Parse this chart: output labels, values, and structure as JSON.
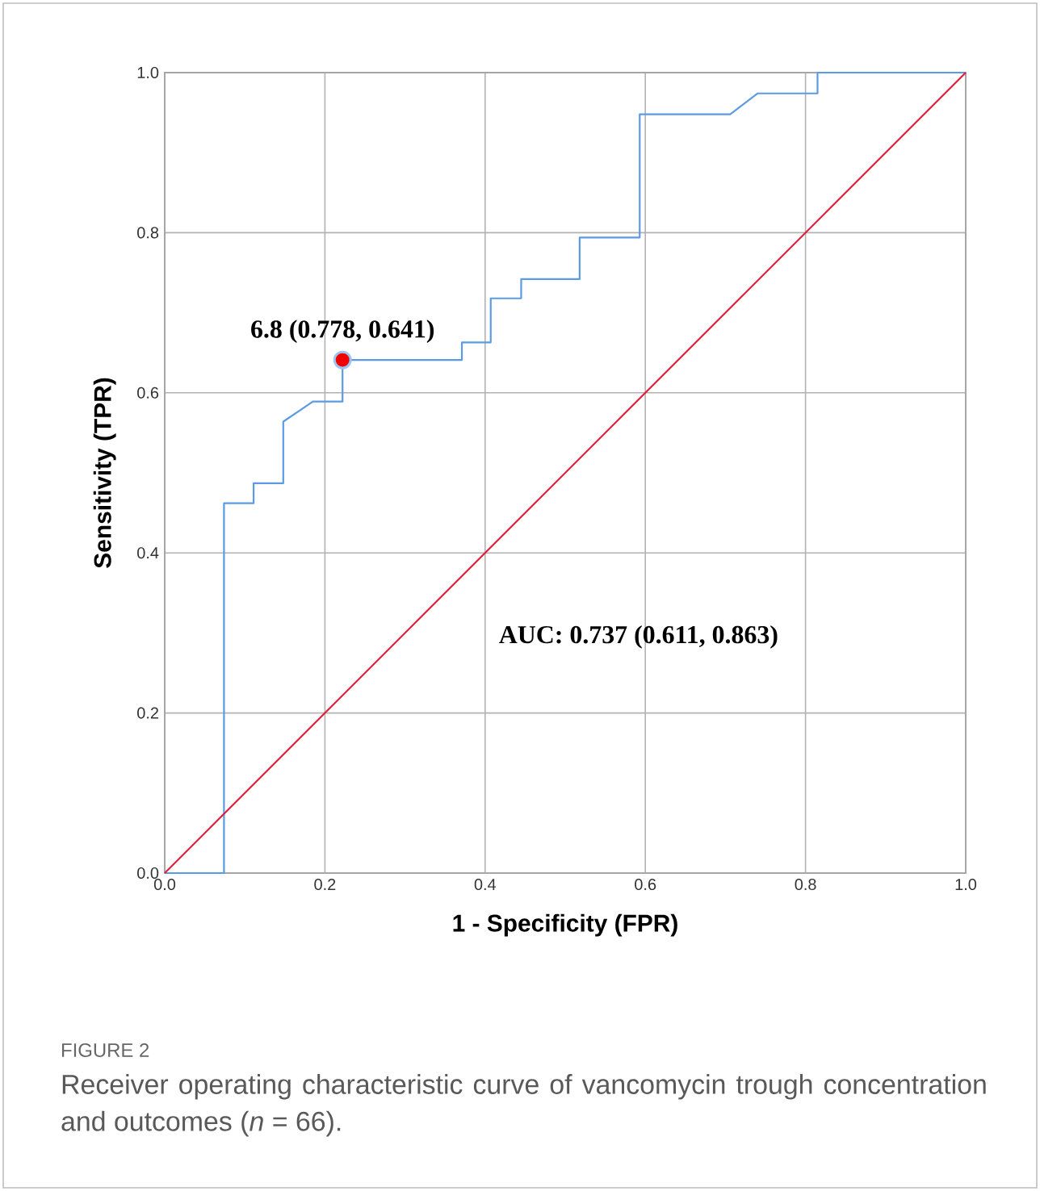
{
  "chart_data": {
    "type": "line",
    "title": "FIGURE 2",
    "subtitle": "Receiver operating characteristic curve of vancomycin trough concentration and outcomes (*n* = 66).",
    "xlabel": "1 - Specificity (FPR)",
    "ylabel": "Sensitivity (TPR)",
    "annotations": [
      {
        "text": "6.8 (0.778, 0.641)",
        "x": 0.222,
        "y": 0.641
      },
      "AUC: 0.737 (0.611, 0.863)"
    ],
    "series": [
      {
        "color": "#5b9be6",
        "x": [
          0,
          0.074,
          0.074,
          0.111,
          0.111,
          0.148,
          0.148,
          0.185,
          0.222,
          0.222,
          0.371,
          0.371,
          0.407,
          0.407,
          0.445,
          0.445,
          0.518,
          0.518,
          0.593,
          0.593,
          0.706,
          0.74,
          0.815,
          0.815,
          1.0
        ],
        "values": [
          0,
          0,
          0.462,
          0.462,
          0.487,
          0.487,
          0.564,
          0.589,
          0.589,
          0.641,
          0.641,
          0.663,
          0.663,
          0.718,
          0.718,
          0.742,
          0.742,
          0.794,
          0.794,
          0.948,
          0.948,
          0.974,
          0.974,
          1.0,
          1.0
        ]
      },
      {
        "color": "#e0203c",
        "x": [
          0,
          1.0
        ],
        "values": [
          0,
          1.0
        ]
      },
      {
        "type": "scatter",
        "color": "#f00000",
        "x": [
          0.222
        ],
        "values": [
          0.641
        ]
      }
    ],
    "xlim": [
      0,
      1
    ],
    "ylim": [
      0,
      1
    ],
    "xticks": [
      {
        "value": 0,
        "label": "0.0"
      },
      0.2,
      0.4,
      0.6,
      0.8,
      {
        "value": 1,
        "label": "1.0"
      }
    ],
    "yticks": [
      {
        "value": 0,
        "label": "0.0"
      },
      0.2,
      0.4,
      0.6,
      0.8,
      {
        "value": 1,
        "label": "1.0"
      }
    ],
    "grid": true
  }
}
